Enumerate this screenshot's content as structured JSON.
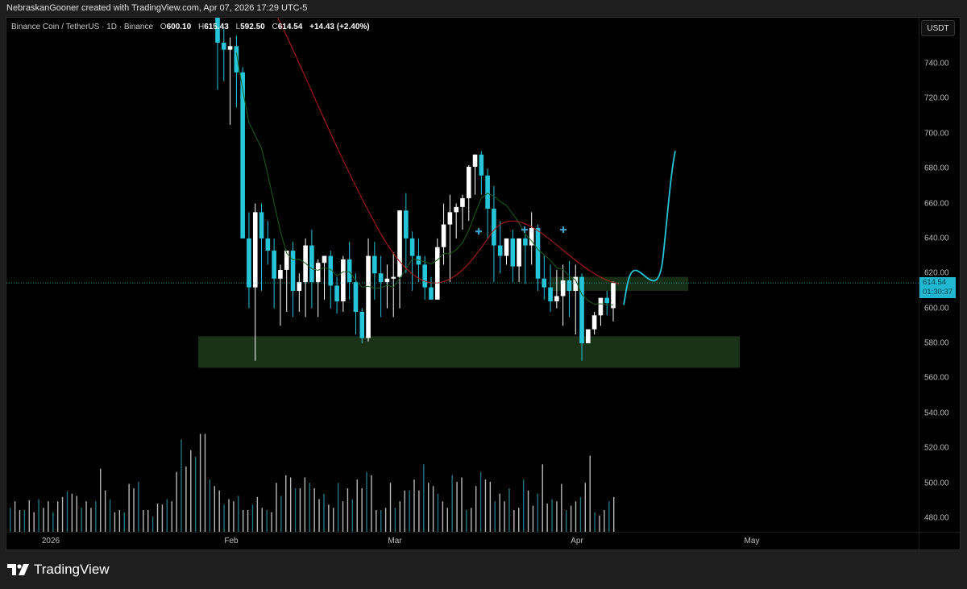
{
  "caption": "NebraskanGooner created with TradingView.com, Apr 07, 2026 17:29 UTC-5",
  "legend": {
    "symbol": "Binance Coin / TetherUS · 1D · Binance",
    "open_label": "O",
    "open": "600.10",
    "high_label": "H",
    "high": "615.43",
    "low_label": "L",
    "low": "592.50",
    "close_label": "C",
    "close": "614.54",
    "change": "+14.43 (+2.40%)"
  },
  "price_axis": {
    "unit": "USDT",
    "ticks": [
      "740.00",
      "720.00",
      "700.00",
      "680.00",
      "660.00",
      "640.00",
      "620.00",
      "600.00",
      "580.00",
      "560.00",
      "540.00",
      "520.00",
      "500.00",
      "480.00"
    ],
    "current_price": "614.54",
    "countdown": "01:30:37"
  },
  "time_axis": {
    "ticks": [
      "2026",
      "Feb",
      "Mar",
      "Apr",
      "May"
    ]
  },
  "brand": {
    "name": "TradingView"
  },
  "colors": {
    "bull": "#ffffff",
    "bear": "#26c6da",
    "ma_fast": "#1b5e20",
    "ma_slow": "#b71c1c",
    "zone": "#1a3318",
    "projection": "#26c6da",
    "price_line": "#26c6da"
  },
  "chart_data": {
    "type": "candlestick",
    "title": "Binance Coin / TetherUS · 1D · Binance",
    "ylabel": "USDT",
    "ylim": [
      470,
      752
    ],
    "x_labels": [
      "2026",
      "Feb",
      "Mar",
      "Apr",
      "May"
    ],
    "candles_ohlc": [
      [
        770,
        775,
        725,
        752
      ],
      [
        752,
        760,
        730,
        748
      ],
      [
        748,
        755,
        705,
        750
      ],
      [
        750,
        756,
        715,
        735
      ],
      [
        735,
        738,
        640,
        640
      ],
      [
        640,
        655,
        600,
        612
      ],
      [
        612,
        660,
        570,
        655
      ],
      [
        655,
        660,
        610,
        640
      ],
      [
        640,
        650,
        625,
        633
      ],
      [
        633,
        640,
        600,
        617
      ],
      [
        617,
        625,
        590,
        622
      ],
      [
        622,
        630,
        598,
        633
      ],
      [
        633,
        638,
        595,
        610
      ],
      [
        610,
        620,
        598,
        615
      ],
      [
        615,
        640,
        595,
        636
      ],
      [
        636,
        645,
        600,
        615
      ],
      [
        615,
        628,
        595,
        626
      ],
      [
        626,
        630,
        605,
        630
      ],
      [
        630,
        633,
        600,
        613
      ],
      [
        613,
        618,
        597,
        604
      ],
      [
        604,
        630,
        598,
        628
      ],
      [
        628,
        638,
        605,
        615
      ],
      [
        615,
        620,
        585,
        598
      ],
      [
        598,
        600,
        580,
        583
      ],
      [
        583,
        640,
        581,
        630
      ],
      [
        630,
        638,
        605,
        620
      ],
      [
        620,
        630,
        595,
        615
      ],
      [
        615,
        625,
        600,
        617
      ],
      [
        617,
        632,
        595,
        618
      ],
      [
        618,
        655,
        600,
        656
      ],
      [
        656,
        666,
        620,
        640
      ],
      [
        640,
        644,
        610,
        630
      ],
      [
        630,
        640,
        615,
        625
      ],
      [
        625,
        630,
        605,
        612
      ],
      [
        612,
        618,
        606,
        605
      ],
      [
        605,
        640,
        608,
        635
      ],
      [
        635,
        660,
        625,
        648
      ],
      [
        648,
        665,
        615,
        655
      ],
      [
        655,
        660,
        640,
        658
      ],
      [
        658,
        665,
        645,
        663
      ],
      [
        663,
        682,
        650,
        681
      ],
      [
        681,
        688,
        665,
        688
      ],
      [
        688,
        690,
        665,
        676
      ],
      [
        676,
        680,
        640,
        657
      ],
      [
        657,
        670,
        615,
        636
      ],
      [
        636,
        650,
        620,
        630
      ],
      [
        630,
        638,
        625,
        640
      ],
      [
        640,
        645,
        615,
        624
      ],
      [
        624,
        632,
        615,
        640
      ],
      [
        640,
        643,
        614,
        636
      ],
      [
        636,
        655,
        625,
        646
      ],
      [
        646,
        648,
        610,
        617
      ],
      [
        617,
        630,
        605,
        612
      ],
      [
        612,
        625,
        598,
        604
      ],
      [
        604,
        622,
        600,
        607
      ],
      [
        607,
        625,
        590,
        616
      ],
      [
        616,
        627,
        595,
        610
      ],
      [
        610,
        625,
        585,
        618
      ],
      [
        618,
        620,
        570,
        580
      ],
      [
        580,
        588,
        583,
        588
      ],
      [
        588,
        598,
        585,
        596
      ],
      [
        596,
        605,
        590,
        606
      ],
      [
        606,
        610,
        596,
        603
      ],
      [
        600.1,
        615.43,
        592.5,
        614.54
      ]
    ],
    "volume_relative": [
      22,
      28,
      20,
      20,
      29,
      18,
      30,
      22,
      28,
      18,
      28,
      32,
      37,
      35,
      33,
      22,
      28,
      22,
      28,
      58,
      38,
      30,
      18,
      20,
      18,
      44,
      40,
      46,
      20,
      20,
      14,
      26,
      25,
      30,
      28,
      55,
      85,
      60,
      75,
      69,
      90,
      90,
      48,
      42,
      38,
      25,
      30,
      28,
      33,
      20,
      20,
      25,
      32,
      22,
      20,
      18,
      45,
      33,
      52,
      50,
      40,
      40,
      50,
      45,
      40,
      30,
      35,
      25,
      22,
      45,
      28,
      40,
      30,
      48,
      40,
      55,
      52,
      20,
      20,
      22,
      45,
      22,
      28,
      38,
      38,
      48,
      38,
      62,
      45,
      42,
      35,
      28,
      22,
      52,
      46,
      50,
      20,
      22,
      42,
      55,
      48,
      46,
      28,
      35,
      28,
      40,
      20,
      22,
      48,
      38,
      24,
      35,
      62,
      26,
      30,
      28,
      44,
      20,
      24,
      28,
      32,
      45,
      70,
      18,
      15,
      20,
      28,
      32
    ],
    "support_zone": {
      "from": 566,
      "to": 584
    },
    "resistance_zone": {
      "from": 610,
      "to": 618
    },
    "projection_path_target": 690
  }
}
